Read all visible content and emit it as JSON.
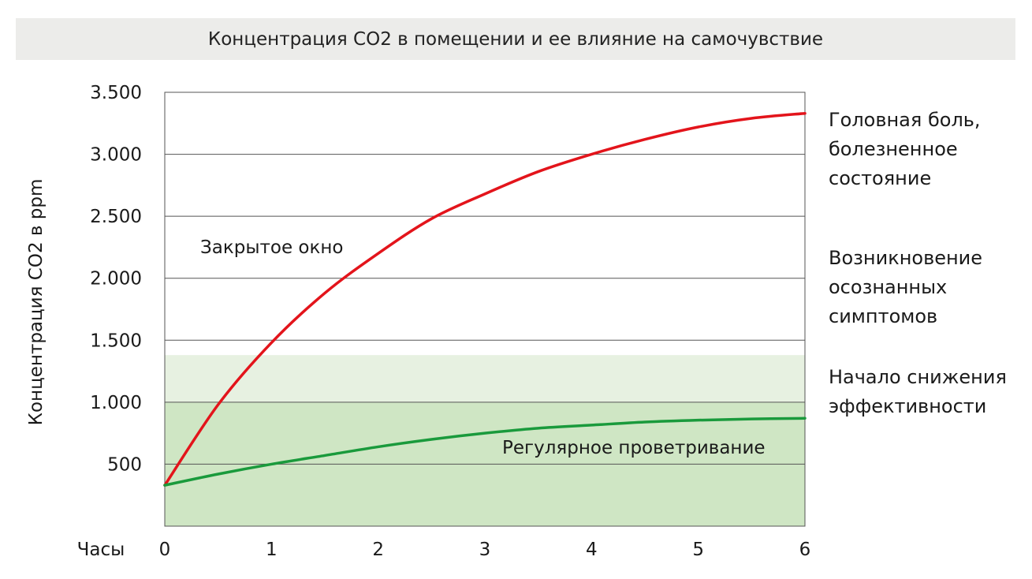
{
  "chart_data": {
    "type": "line",
    "title": "Концентрация СО2 в помещении и ее влияние на самочувствие",
    "xlabel": "Часы",
    "ylabel": "Концентрация СО2 в ppm",
    "xlim": [
      0,
      6
    ],
    "ylim": [
      0,
      3500
    ],
    "x_ticks": [
      "0",
      "1",
      "2",
      "3",
      "4",
      "5",
      "6"
    ],
    "y_ticks": [
      "500",
      "1.000",
      "1.500",
      "2.000",
      "2.500",
      "3.000",
      "3.500"
    ],
    "y_tick_values": [
      500,
      1000,
      1500,
      2000,
      2500,
      3000,
      3500
    ],
    "grid": true,
    "bands": [
      {
        "from": 0,
        "to": 1000,
        "color": "#cfe6c4"
      },
      {
        "from": 1000,
        "to": 1380,
        "color": "#e7f1e1"
      }
    ],
    "series": [
      {
        "name": "Закрытое окно",
        "color": "#e3141b",
        "x": [
          0,
          0.5,
          1,
          1.5,
          2,
          2.5,
          3,
          3.5,
          4,
          4.5,
          5,
          5.5,
          6
        ],
        "values": [
          330,
          980,
          1480,
          1880,
          2200,
          2480,
          2680,
          2860,
          3000,
          3120,
          3220,
          3290,
          3330
        ]
      },
      {
        "name": "Регулярное проветривание",
        "color": "#1a9a3c",
        "x": [
          0,
          0.5,
          1,
          1.5,
          2,
          2.5,
          3,
          3.5,
          4,
          4.5,
          5,
          5.5,
          6
        ],
        "values": [
          330,
          420,
          500,
          570,
          640,
          700,
          750,
          790,
          815,
          840,
          855,
          865,
          870
        ]
      }
    ],
    "annotations": {
      "closed_window": "Закрытое окно",
      "regular_ventilation": "Регулярное проветривание"
    },
    "symptoms": [
      {
        "lines": [
          "Головная боль,",
          "болезненное",
          "состояние"
        ]
      },
      {
        "lines": [
          "Возникновение",
          "осознанных",
          "симптомов"
        ]
      },
      {
        "lines": [
          "Начало снижения",
          "эффективности"
        ]
      }
    ]
  }
}
